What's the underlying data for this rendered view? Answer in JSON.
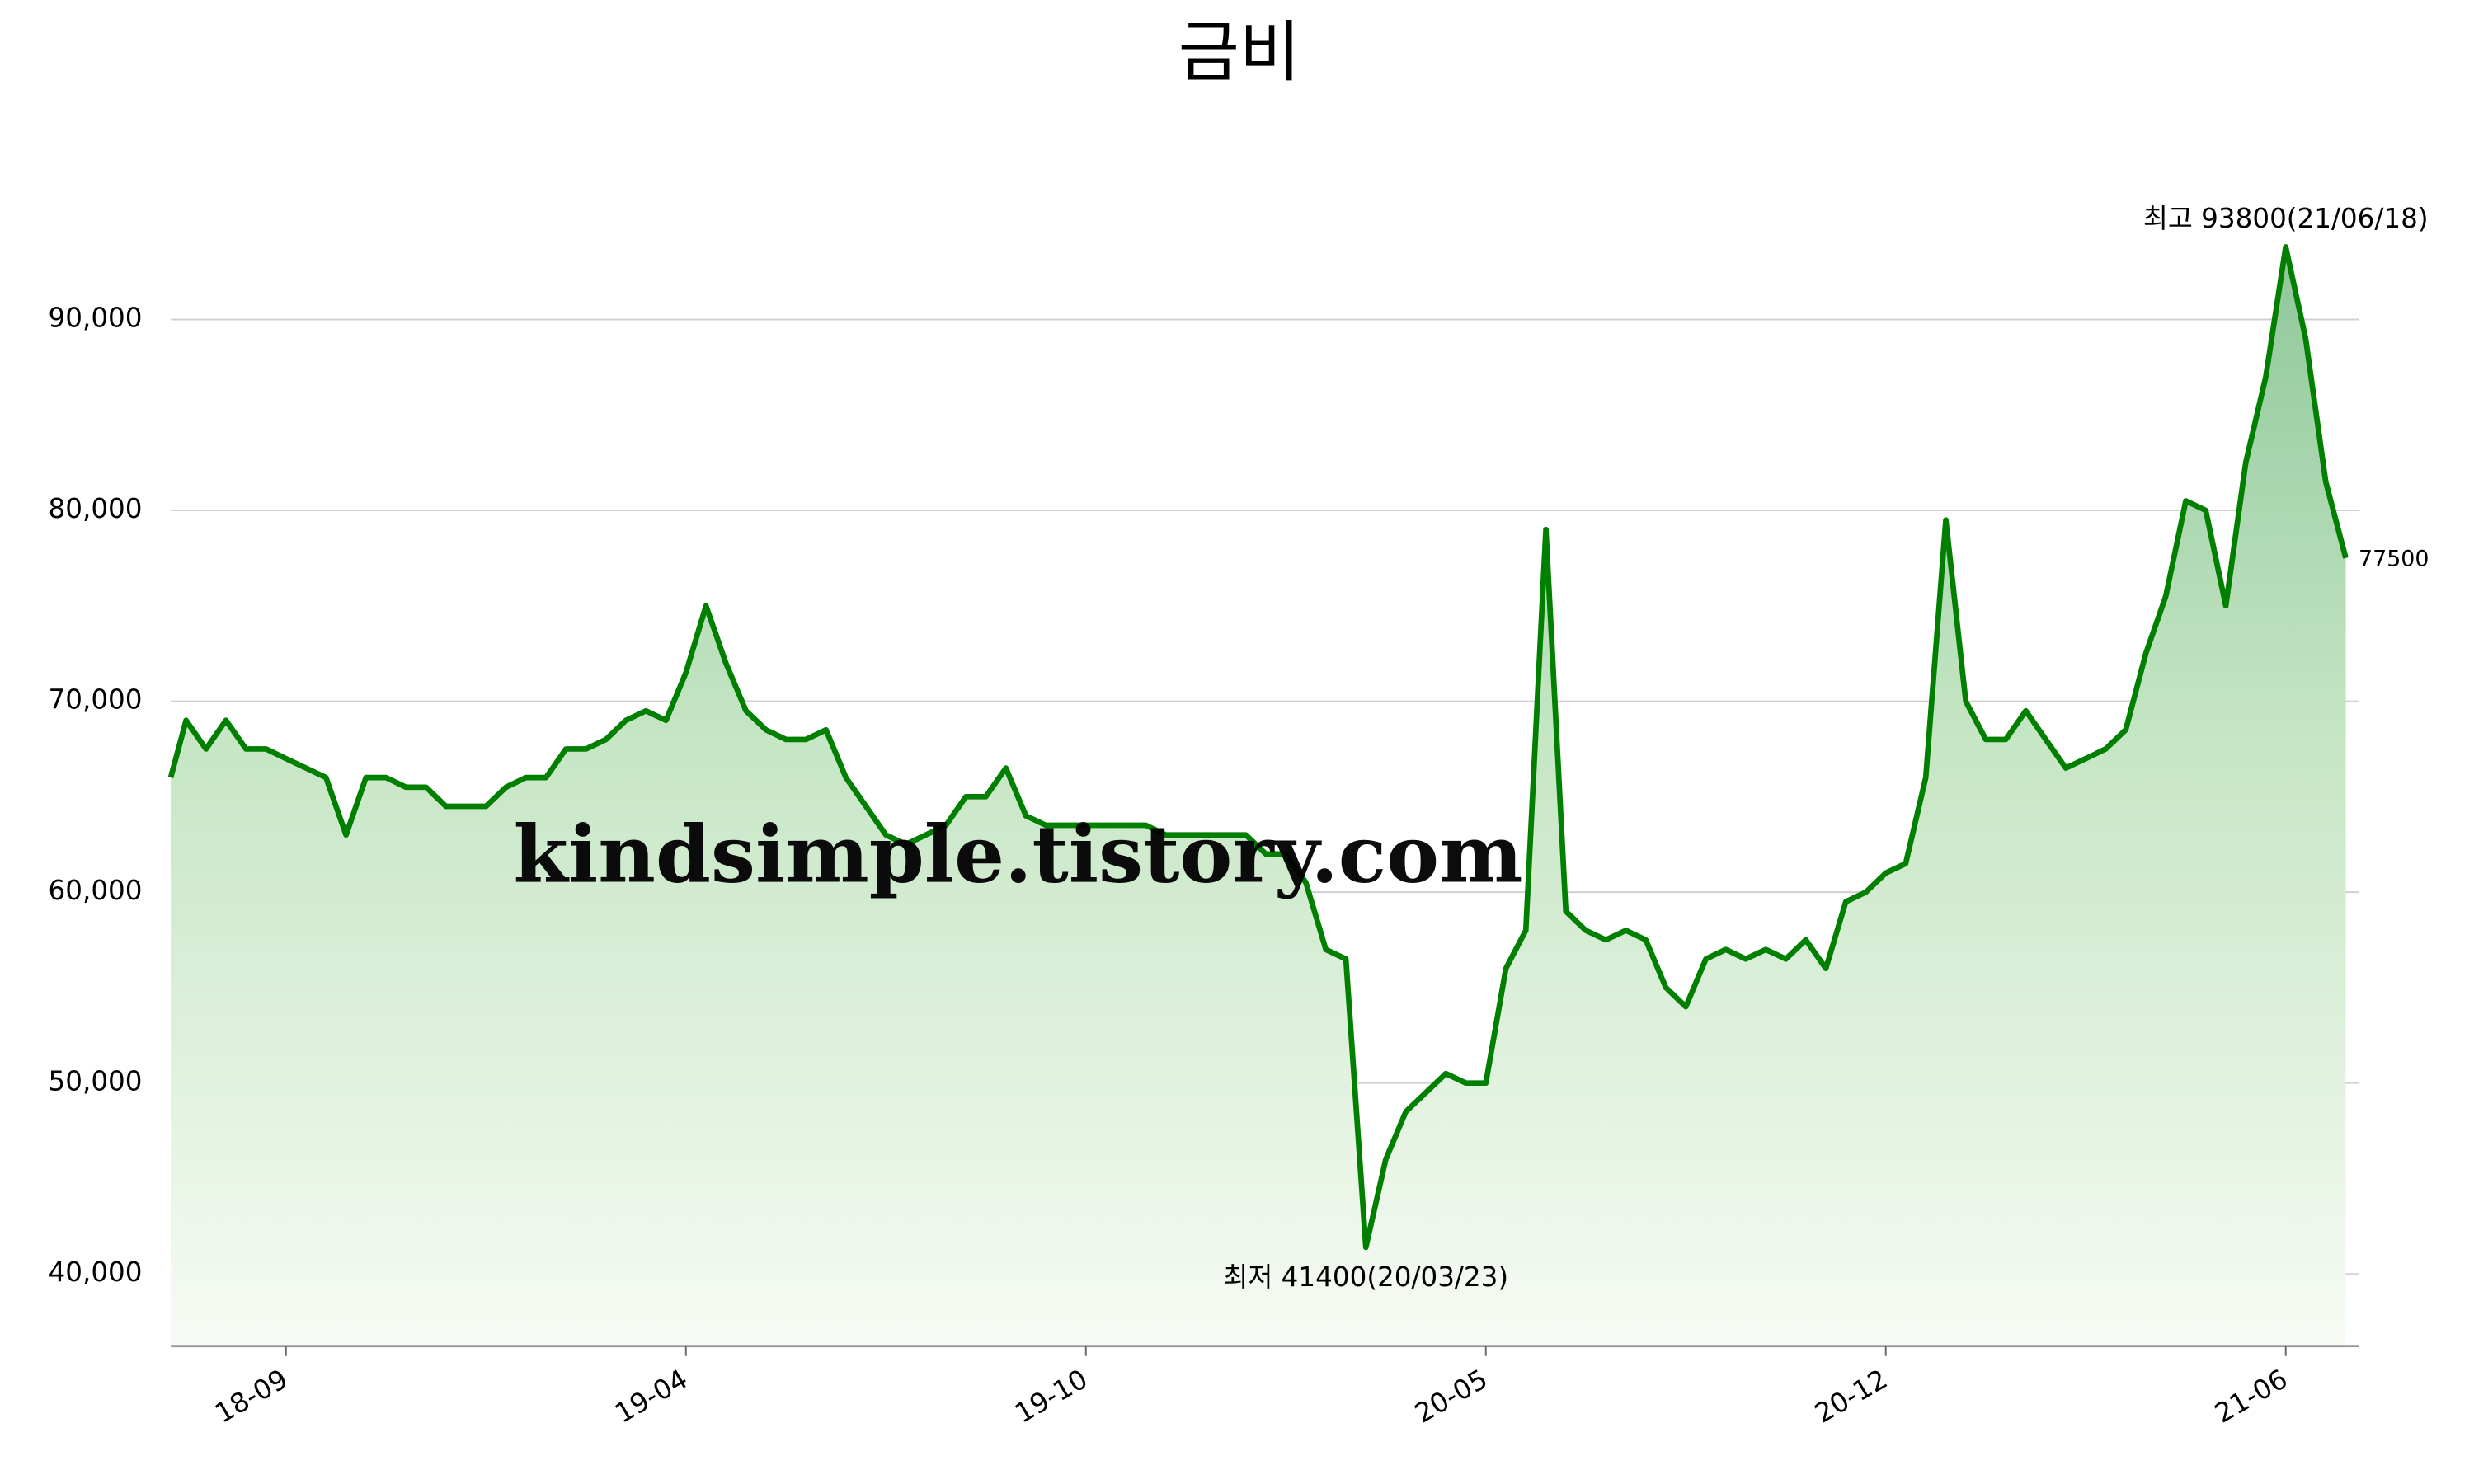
{
  "chart_data": {
    "type": "area-line",
    "title": "금비",
    "watermark": "kindsimple.tistory.com",
    "max_label": "최고 93800(21/06/18)",
    "min_label": "최저 41400(20/03/23)",
    "categories": [
      null,
      null,
      null,
      null,
      null,
      null,
      "18-09",
      null,
      null,
      null,
      null,
      null,
      null,
      null,
      null,
      null,
      null,
      null,
      null,
      null,
      null,
      null,
      null,
      null,
      null,
      null,
      "19-04",
      null,
      null,
      null,
      null,
      null,
      null,
      null,
      null,
      null,
      null,
      null,
      null,
      null,
      null,
      null,
      null,
      null,
      null,
      null,
      "19-10",
      null,
      null,
      null,
      null,
      null,
      null,
      null,
      null,
      null,
      null,
      null,
      null,
      null,
      null,
      null,
      null,
      null,
      null,
      null,
      "20-05",
      null,
      null,
      null,
      null,
      null,
      null,
      null,
      null,
      null,
      null,
      null,
      null,
      null,
      null,
      null,
      null,
      null,
      null,
      null,
      "20-12",
      null,
      null,
      null,
      null,
      null,
      null,
      null,
      null,
      null,
      null,
      null,
      null,
      null,
      null,
      null,
      null,
      null,
      null,
      null,
      "21-06",
      null,
      null,
      null
    ],
    "series": [
      {
        "name": "금비",
        "color": "#007f00",
        "values": [
          66000,
          69000,
          67500,
          69000,
          67500,
          67500,
          67000,
          66500,
          66000,
          63000,
          66000,
          66000,
          65500,
          65500,
          64500,
          64500,
          64500,
          65500,
          66000,
          66000,
          67500,
          67500,
          68000,
          69000,
          69500,
          69000,
          71500,
          75000,
          72000,
          69500,
          68500,
          68000,
          68000,
          68500,
          66000,
          64500,
          63000,
          62500,
          63000,
          63500,
          65000,
          65000,
          66500,
          64000,
          63500,
          63500,
          63500,
          63500,
          63500,
          63500,
          63000,
          63000,
          63000,
          63000,
          63000,
          62000,
          62000,
          60500,
          57000,
          56500,
          41400,
          46000,
          48500,
          49500,
          50500,
          50000,
          50000,
          56000,
          58000,
          79000,
          59000,
          58000,
          57500,
          58000,
          57500,
          55000,
          54000,
          56500,
          57000,
          56500,
          57000,
          56500,
          57500,
          56000,
          59500,
          60000,
          61000,
          61500,
          66000,
          79500,
          70000,
          68000,
          68000,
          69500,
          68000,
          66500,
          67000,
          67500,
          68500,
          72500,
          75500,
          80500,
          80000,
          75000,
          82500,
          87000,
          93800,
          89000,
          81500,
          77500
        ]
      }
    ],
    "ylim": [
      36200,
      96800
    ],
    "yticks": [
      {
        "value": 40000,
        "label": "40,000"
      },
      {
        "value": 50000,
        "label": "50,000"
      },
      {
        "value": 60000,
        "label": "60,000"
      },
      {
        "value": 70000,
        "label": "70,000"
      },
      {
        "value": 80000,
        "label": "80,000"
      },
      {
        "value": 90000,
        "label": "90,000"
      }
    ],
    "grid": true,
    "max_color": "#ff0000",
    "min_color": "#0000ff",
    "watermark_color": "#e29ee8"
  }
}
